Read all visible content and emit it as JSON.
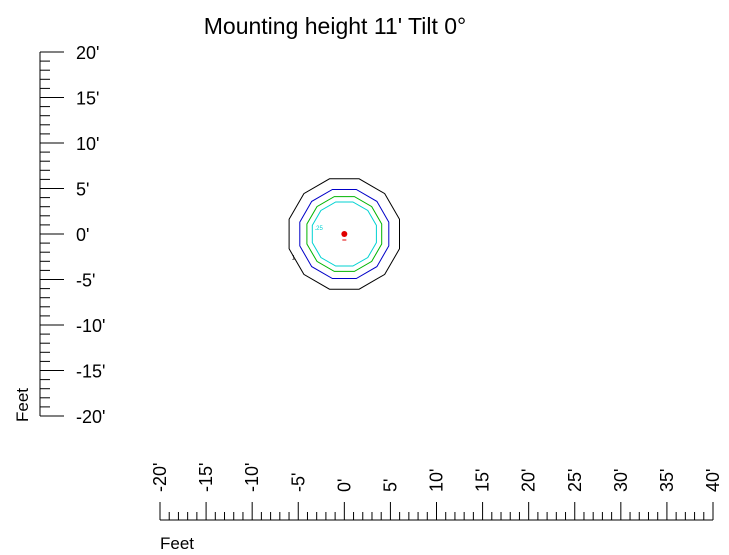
{
  "chart_data": {
    "type": "contour",
    "title": "Mounting height 11'  Tilt 0°",
    "xlabel": "Feet",
    "ylabel": "Feet",
    "xlim": [
      -20,
      40
    ],
    "ylim": [
      -20,
      20
    ],
    "x_ticks": [
      "-20'",
      "-15'",
      "-10'",
      "-5'",
      "0'",
      "5'",
      "10'",
      "15'",
      "20'",
      "25'",
      "30'",
      "35'",
      "40'"
    ],
    "y_ticks": [
      "20'",
      "15'",
      "10'",
      "5'",
      "0'",
      "-5'",
      "-10'",
      "-15'",
      "-20'"
    ],
    "fixture": {
      "x": 0,
      "y": 0,
      "color": "#e00000"
    },
    "contours": [
      {
        "color": "#000000",
        "radius": 6.2,
        "sides": 12,
        "label": "1"
      },
      {
        "color": "#0000c8",
        "radius": 5.0,
        "sides": 12,
        "label": ""
      },
      {
        "color": "#00b400",
        "radius": 4.2,
        "sides": 12,
        "label": ""
      },
      {
        "color": "#00d2d2",
        "radius": 3.6,
        "sides": 12,
        "label": ".25"
      }
    ]
  }
}
